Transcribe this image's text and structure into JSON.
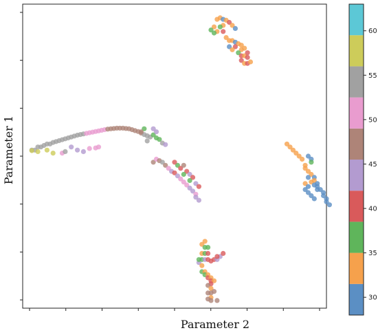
{
  "chart_data": {
    "type": "scatter",
    "title": "",
    "xlabel": "Parameter 2",
    "ylabel": "Parameter 1",
    "x_tick_labels_shown": false,
    "y_tick_labels_shown": false,
    "x_tick_count": 9,
    "y_tick_count": 7,
    "grid": false,
    "point_alpha": 0.8,
    "colormap": "tab10-discrete",
    "colorbar": {
      "range": [
        28,
        63
      ],
      "ticks": [
        30,
        35,
        40,
        45,
        50,
        55,
        60
      ],
      "tick_labels": [
        "30",
        "35",
        "40",
        "45",
        "50",
        "55",
        "60"
      ],
      "bands": [
        {
          "from": 28.0,
          "to": 31.5,
          "color": "#5b8fc4"
        },
        {
          "from": 31.5,
          "to": 35.0,
          "color": "#f6a14c"
        },
        {
          "from": 35.0,
          "to": 38.5,
          "color": "#5fb55b"
        },
        {
          "from": 38.5,
          "to": 42.0,
          "color": "#d95a5b"
        },
        {
          "from": 42.0,
          "to": 45.5,
          "color": "#b39bd0"
        },
        {
          "from": 45.5,
          "to": 49.0,
          "color": "#ae8478"
        },
        {
          "from": 49.0,
          "to": 52.5,
          "color": "#e99ccf"
        },
        {
          "from": 52.5,
          "to": 56.0,
          "color": "#a1a1a1"
        },
        {
          "from": 56.0,
          "to": 59.5,
          "color": "#cdcc5a"
        },
        {
          "from": 59.5,
          "to": 63.0,
          "color": "#5cc8d6"
        }
      ]
    },
    "xlim": [
      0,
      100
    ],
    "ylim": [
      0,
      100
    ],
    "clusters": [
      {
        "name": "arc",
        "points": [
          [
            3,
            52,
            55
          ],
          [
            4,
            52,
            55
          ],
          [
            5,
            53,
            55
          ],
          [
            6,
            53,
            55
          ],
          [
            7,
            53.5,
            55
          ],
          [
            8,
            54,
            55
          ],
          [
            9,
            54,
            55
          ],
          [
            10,
            54.5,
            55
          ],
          [
            11,
            54.8,
            55
          ],
          [
            12,
            55.1,
            55
          ],
          [
            13,
            55.4,
            55
          ],
          [
            14,
            55.7,
            55
          ],
          [
            15,
            56,
            55
          ],
          [
            16,
            56.3,
            55
          ],
          [
            17,
            56.6,
            55
          ],
          [
            18,
            56.9,
            55
          ],
          [
            19,
            57.1,
            55
          ],
          [
            20,
            57.3,
            55
          ],
          [
            21,
            57.5,
            50
          ],
          [
            22,
            57.7,
            50
          ],
          [
            23,
            57.9,
            50
          ],
          [
            24,
            58.1,
            50
          ],
          [
            25,
            58.3,
            50
          ],
          [
            26,
            58.5,
            50
          ],
          [
            27,
            58.7,
            50
          ],
          [
            28,
            58.9,
            47
          ],
          [
            29,
            59,
            47
          ],
          [
            30,
            59.1,
            47
          ],
          [
            31,
            59.2,
            47
          ],
          [
            32,
            59.2,
            47
          ],
          [
            33,
            59.2,
            47
          ],
          [
            34,
            59.1,
            47
          ],
          [
            35,
            59,
            47
          ],
          [
            36,
            58.7,
            47
          ],
          [
            37,
            58.4,
            47
          ],
          [
            38,
            58.1,
            47
          ],
          [
            39,
            57.6,
            47
          ],
          [
            40,
            57.1,
            55
          ],
          [
            41,
            56.7,
            55
          ],
          [
            42,
            56.3,
            55
          ],
          [
            8,
            52,
            56
          ],
          [
            10,
            51,
            56
          ],
          [
            13,
            51,
            50
          ],
          [
            14,
            51.5,
            55
          ],
          [
            16,
            53,
            43
          ],
          [
            18,
            52,
            42
          ],
          [
            20,
            51.5,
            45
          ],
          [
            22,
            52.5,
            50
          ],
          [
            24,
            52.7,
            50
          ],
          [
            25,
            53,
            50
          ],
          [
            41,
            55,
            55
          ],
          [
            43,
            57,
            37
          ],
          [
            44,
            56,
            37
          ],
          [
            45,
            55.5,
            37
          ],
          [
            46,
            54.3,
            55
          ],
          [
            47,
            53.8,
            43
          ],
          [
            44,
            58,
            42
          ],
          [
            43,
            59,
            42
          ],
          [
            40,
            59,
            35
          ],
          [
            39,
            58,
            47
          ],
          [
            5,
            51.5,
            56
          ],
          [
            3,
            51.8,
            57
          ]
        ]
      },
      {
        "name": "middle-diagonal",
        "points": [
          [
            43,
            48,
            47
          ],
          [
            44,
            49,
            50
          ],
          [
            45,
            48.5,
            47
          ],
          [
            46,
            48,
            55
          ],
          [
            47,
            47,
            47
          ],
          [
            48,
            46,
            50
          ],
          [
            49,
            45,
            43
          ],
          [
            50,
            44.5,
            40
          ],
          [
            51,
            43.5,
            42
          ],
          [
            52,
            42.5,
            50
          ],
          [
            53,
            41.5,
            50
          ],
          [
            54,
            40.5,
            50
          ],
          [
            55,
            39.5,
            45
          ],
          [
            56,
            38.5,
            43
          ],
          [
            57,
            37.5,
            50
          ],
          [
            57,
            36.5,
            43
          ],
          [
            58,
            35.5,
            43
          ],
          [
            51,
            47,
            36
          ],
          [
            52,
            46,
            40
          ],
          [
            53,
            47,
            46
          ],
          [
            54,
            45,
            40
          ],
          [
            55,
            44,
            45
          ],
          [
            56,
            43,
            40
          ],
          [
            57,
            41,
            43
          ],
          [
            58,
            40,
            40
          ],
          [
            55,
            42,
            36
          ],
          [
            53,
            44,
            36
          ],
          [
            50,
            48,
            40
          ]
        ]
      },
      {
        "name": "top-right",
        "points": [
          [
            64,
            95,
            34
          ],
          [
            65,
            95.5,
            34
          ],
          [
            66,
            95,
            31
          ],
          [
            67,
            94.7,
            34
          ],
          [
            68,
            94,
            40
          ],
          [
            69,
            93,
            34
          ],
          [
            70,
            92,
            31
          ],
          [
            66,
            93,
            34
          ],
          [
            64,
            91,
            34
          ],
          [
            65,
            92.5,
            37
          ],
          [
            63,
            92.5,
            34
          ],
          [
            62,
            91.5,
            37
          ],
          [
            63,
            90.5,
            37
          ],
          [
            66,
            91,
            40
          ],
          [
            67,
            89,
            34
          ],
          [
            68,
            88,
            34
          ],
          [
            69,
            88,
            34
          ],
          [
            70,
            87.5,
            31
          ],
          [
            71,
            87,
            34
          ],
          [
            72,
            86.5,
            34
          ],
          [
            70,
            86,
            40
          ],
          [
            68,
            86,
            31
          ],
          [
            69,
            85,
            34
          ],
          [
            72,
            85,
            34
          ],
          [
            73,
            85.5,
            34
          ],
          [
            71,
            84,
            37
          ],
          [
            72,
            83,
            40
          ],
          [
            73,
            83,
            34
          ],
          [
            74,
            84,
            40
          ],
          [
            74,
            82.5,
            40
          ],
          [
            72,
            81.5,
            40
          ],
          [
            73,
            80.5,
            34
          ],
          [
            74,
            80.5,
            40
          ],
          [
            75,
            81,
            34
          ]
        ]
      },
      {
        "name": "right-diagonal",
        "points": [
          [
            87,
            54,
            34
          ],
          [
            88,
            53,
            34
          ],
          [
            89,
            52,
            34
          ],
          [
            90,
            51,
            34
          ],
          [
            91,
            50,
            34
          ],
          [
            92,
            49,
            34
          ],
          [
            93,
            47,
            34
          ],
          [
            93,
            46,
            34
          ],
          [
            94,
            45,
            34
          ],
          [
            95,
            44,
            34
          ],
          [
            96,
            43,
            31
          ],
          [
            96,
            42,
            34
          ],
          [
            97,
            41,
            31
          ],
          [
            97,
            40,
            31
          ],
          [
            98,
            39,
            31
          ],
          [
            99,
            38,
            31
          ],
          [
            99,
            37,
            31
          ],
          [
            100,
            36,
            31
          ],
          [
            100,
            35,
            31
          ],
          [
            101,
            34,
            31
          ],
          [
            94,
            50,
            31
          ],
          [
            95,
            49,
            31
          ],
          [
            95,
            48,
            36
          ],
          [
            93,
            41,
            34
          ],
          [
            94,
            40,
            31
          ],
          [
            93,
            39,
            31
          ],
          [
            94,
            38,
            31
          ],
          [
            95,
            37,
            31
          ],
          [
            96,
            36,
            31
          ],
          [
            94,
            43,
            31
          ],
          [
            95,
            41.5,
            34
          ],
          [
            96,
            40.5,
            31
          ],
          [
            97,
            39,
            31
          ]
        ]
      },
      {
        "name": "bottom",
        "points": [
          [
            59,
            21,
            34
          ],
          [
            60,
            22,
            34
          ],
          [
            60,
            20,
            36
          ],
          [
            61,
            20,
            36
          ],
          [
            59,
            18,
            34
          ],
          [
            60,
            18,
            36
          ],
          [
            61,
            18,
            40
          ],
          [
            59,
            16,
            36
          ],
          [
            60,
            16,
            43
          ],
          [
            61,
            16,
            40
          ],
          [
            62,
            15.5,
            40
          ],
          [
            63,
            16,
            40
          ],
          [
            64,
            16,
            43
          ],
          [
            65,
            17,
            43
          ],
          [
            66,
            18,
            40
          ],
          [
            64,
            17,
            40
          ],
          [
            58,
            15,
            43
          ],
          [
            58,
            16,
            36
          ],
          [
            59,
            14,
            34
          ],
          [
            59,
            12,
            36
          ],
          [
            60,
            12,
            34
          ],
          [
            60,
            11,
            36
          ],
          [
            61,
            11,
            34
          ],
          [
            61,
            10,
            40
          ],
          [
            62,
            10,
            34
          ],
          [
            62,
            9,
            40
          ],
          [
            63,
            9,
            34
          ],
          [
            62,
            8,
            40
          ],
          [
            61,
            7.5,
            47
          ],
          [
            62,
            6.5,
            34
          ],
          [
            63,
            5.5,
            47
          ],
          [
            62,
            5,
            47
          ],
          [
            61,
            5,
            47
          ],
          [
            62,
            3.5,
            34
          ],
          [
            61,
            3,
            47
          ],
          [
            62,
            2.5,
            47
          ],
          [
            64,
            2.5,
            47
          ]
        ]
      }
    ]
  }
}
